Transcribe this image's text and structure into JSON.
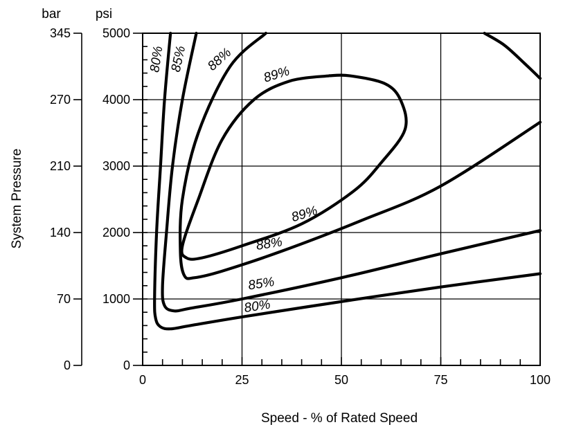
{
  "chart_data": {
    "type": "line",
    "title": "",
    "xlabel": "Speed - % of Rated Speed",
    "ylabel": "System Pressure",
    "y_units": {
      "bar": "bar",
      "psi": "psi"
    },
    "xlim": [
      0,
      100
    ],
    "ylim": [
      0,
      5000
    ],
    "x_ticks": [
      0,
      25,
      50,
      75,
      100
    ],
    "psi_ticks": [
      0,
      1000,
      2000,
      3000,
      4000,
      5000
    ],
    "psi_tick_labels": [
      "0",
      "1000",
      "2000",
      "3000",
      "4000",
      "5000"
    ],
    "bar_tick_labels": [
      "0",
      "70",
      "140",
      "210",
      "270",
      "345"
    ],
    "grid": true,
    "series": [
      {
        "name": "80%",
        "points": [
          [
            7,
            5000
          ],
          [
            5.5,
            4000
          ],
          [
            4.5,
            3000
          ],
          [
            3.5,
            2000
          ],
          [
            3,
            1000
          ],
          [
            3.3,
            700
          ],
          [
            4.5,
            580
          ],
          [
            7,
            550
          ],
          [
            12,
            600
          ],
          [
            25,
            730
          ],
          [
            50,
            960
          ],
          [
            75,
            1180
          ],
          [
            100,
            1380
          ]
        ]
      },
      {
        "name": "85%",
        "points": [
          [
            13.5,
            5000
          ],
          [
            10,
            4000
          ],
          [
            7.5,
            3000
          ],
          [
            6,
            2000
          ],
          [
            5,
            1200
          ],
          [
            5.5,
            900
          ],
          [
            8,
            820
          ],
          [
            12,
            860
          ],
          [
            25,
            1000
          ],
          [
            50,
            1320
          ],
          [
            75,
            1680
          ],
          [
            100,
            2030
          ]
        ]
      },
      {
        "name": "88%",
        "points": [
          [
            31,
            5000
          ],
          [
            22,
            4500
          ],
          [
            14,
            3500
          ],
          [
            10,
            2500
          ],
          [
            9.5,
            1700
          ],
          [
            10.5,
            1350
          ],
          [
            13,
            1320
          ],
          [
            20,
            1420
          ],
          [
            35,
            1720
          ],
          [
            55,
            2180
          ],
          [
            75,
            2700
          ],
          [
            100,
            3660
          ]
        ]
      },
      {
        "name": "89%",
        "points": [
          [
            47,
            4360
          ],
          [
            37,
            4280
          ],
          [
            28,
            4000
          ],
          [
            20,
            3400
          ],
          [
            14,
            2500
          ],
          [
            10,
            1800
          ],
          [
            11,
            1620
          ],
          [
            15,
            1620
          ],
          [
            25,
            1800
          ],
          [
            40,
            2130
          ],
          [
            53,
            2620
          ],
          [
            60,
            3050
          ],
          [
            66,
            3550
          ],
          [
            65,
            3980
          ],
          [
            61,
            4240
          ],
          [
            52,
            4360
          ],
          [
            47,
            4360
          ]
        ]
      },
      {
        "name": "",
        "points": [
          [
            86,
            5000
          ],
          [
            91,
            4820
          ],
          [
            96,
            4550
          ],
          [
            100,
            4320
          ]
        ]
      }
    ],
    "annotations": [
      {
        "text": "80%",
        "x": 4.5,
        "y": 4600,
        "rotate": -82
      },
      {
        "text": "85%",
        "x": 10,
        "y": 4600,
        "rotate": -78
      },
      {
        "text": "88%",
        "x": 20,
        "y": 4560,
        "rotate": -42
      },
      {
        "text": "89%",
        "x": 34,
        "y": 4320,
        "rotate": -17
      },
      {
        "text": "89%",
        "x": 41,
        "y": 2220,
        "rotate": -17
      },
      {
        "text": "88%",
        "x": 32,
        "y": 1770,
        "rotate": -9
      },
      {
        "text": "85%",
        "x": 30,
        "y": 1170,
        "rotate": -9
      },
      {
        "text": "80%",
        "x": 29,
        "y": 830,
        "rotate": -9
      }
    ]
  }
}
